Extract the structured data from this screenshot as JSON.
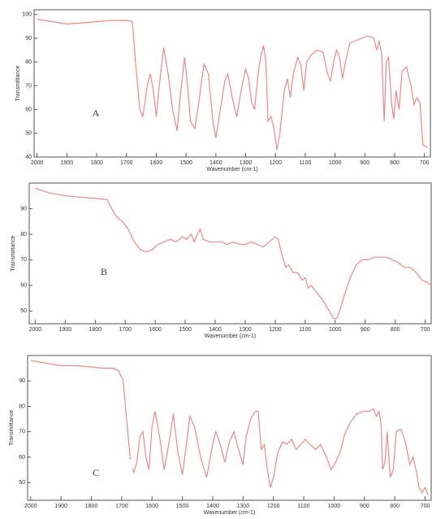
{
  "chart_data": [
    {
      "type": "line",
      "title": "A",
      "xlabel": "Wavenumber (cm-1)",
      "ylabel": "Transmittance",
      "x": [
        2000,
        1950,
        1900,
        1850,
        1800,
        1750,
        1700,
        1680,
        1670,
        1655,
        1645,
        1630,
        1620,
        1610,
        1600,
        1590,
        1575,
        1560,
        1545,
        1530,
        1520,
        1505,
        1495,
        1485,
        1470,
        1455,
        1440,
        1425,
        1410,
        1400,
        1385,
        1370,
        1360,
        1345,
        1330,
        1315,
        1300,
        1290,
        1280,
        1270,
        1260,
        1250,
        1240,
        1232,
        1225,
        1215,
        1205,
        1195,
        1185,
        1170,
        1160,
        1150,
        1140,
        1125,
        1115,
        1105,
        1095,
        1080,
        1060,
        1040,
        1025,
        1015,
        1005,
        995,
        985,
        975,
        965,
        950,
        930,
        910,
        890,
        870,
        860,
        852,
        843,
        835,
        828,
        820,
        810,
        803,
        795,
        785,
        775,
        760,
        745,
        735,
        725,
        715,
        705,
        690
      ],
      "series": [
        {
          "color": "#e58a8a",
          "values": [
            98,
            97,
            96,
            96.5,
            97,
            97.5,
            97.5,
            97,
            80,
            60,
            57,
            70,
            75,
            68,
            57,
            70,
            86,
            75,
            60,
            51,
            65,
            82,
            70,
            55,
            52,
            65,
            79,
            75,
            55,
            48,
            60,
            72,
            75,
            65,
            57,
            68,
            77,
            73,
            63,
            60,
            73,
            82,
            87,
            80,
            55,
            57,
            52,
            43,
            50,
            68,
            73,
            65,
            75,
            82,
            79,
            68,
            80,
            83,
            85,
            84,
            75,
            72,
            80,
            85,
            82,
            73,
            80,
            88,
            89,
            90,
            91,
            90,
            85,
            89,
            83,
            55,
            80,
            82,
            62,
            56,
            68,
            60,
            76,
            78,
            70,
            62,
            65,
            63,
            45,
            44
          ]
        }
      ],
      "xlim": [
        2010,
        680
      ],
      "ylim": [
        40,
        102
      ],
      "xticks": [
        2000,
        1900,
        1800,
        1700,
        1600,
        1500,
        1400,
        1300,
        1200,
        1100,
        1000,
        900,
        800,
        700
      ],
      "yticks": [
        40,
        50,
        60,
        70,
        80,
        90,
        100
      ]
    },
    {
      "type": "line",
      "title": "B",
      "xlabel": "Wavenumber (cm-1)",
      "ylabel": "Transmittance",
      "x": [
        2000,
        1950,
        1900,
        1850,
        1800,
        1760,
        1745,
        1730,
        1710,
        1690,
        1670,
        1650,
        1630,
        1610,
        1590,
        1570,
        1550,
        1530,
        1510,
        1495,
        1480,
        1470,
        1460,
        1450,
        1440,
        1420,
        1400,
        1380,
        1360,
        1340,
        1320,
        1300,
        1280,
        1260,
        1240,
        1220,
        1200,
        1190,
        1180,
        1165,
        1155,
        1140,
        1125,
        1110,
        1100,
        1090,
        1080,
        1060,
        1040,
        1020,
        1005,
        995,
        985,
        970,
        950,
        930,
        910,
        890,
        870,
        850,
        830,
        810,
        790,
        770,
        750,
        730,
        710,
        690,
        680
      ],
      "series": [
        {
          "color": "#e58a8a",
          "values": [
            98,
            96,
            95,
            94.5,
            94,
            93.5,
            90,
            87,
            85,
            82,
            77,
            74,
            73,
            74,
            76,
            77,
            78,
            77,
            79,
            78,
            80,
            77,
            80,
            82,
            78,
            77,
            77,
            77,
            76,
            77,
            76,
            76,
            77,
            76,
            75,
            77,
            79,
            78,
            73,
            67,
            68,
            65,
            65,
            62,
            63,
            59,
            60,
            57,
            54,
            50,
            47,
            47,
            50,
            56,
            63,
            68,
            70,
            70,
            71,
            71,
            71,
            70,
            69,
            67,
            67,
            65,
            62,
            61,
            60
          ]
        }
      ],
      "xlim": [
        2020,
        680
      ],
      "ylim": [
        45,
        100
      ],
      "xticks": [
        2000,
        1900,
        1800,
        1700,
        1600,
        1500,
        1400,
        1300,
        1200,
        1100,
        1000,
        900,
        800,
        700
      ],
      "yticks": [
        50,
        60,
        70,
        80,
        90
      ]
    },
    {
      "type": "line",
      "title": "C",
      "xlabel": "Wavenumber (cm-1)",
      "ylabel": "Transmittance",
      "x": [
        2000,
        1950,
        1900,
        1850,
        1800,
        1760,
        1730,
        1710,
        1695,
        1680,
        1670,
        1660,
        1650,
        1640,
        1630,
        1620,
        1610,
        1600,
        1590,
        1575,
        1560,
        1545,
        1530,
        1515,
        1500,
        1490,
        1475,
        1460,
        1440,
        1420,
        1400,
        1390,
        1375,
        1360,
        1345,
        1330,
        1315,
        1300,
        1290,
        1275,
        1260,
        1250,
        1240,
        1230,
        1220,
        1210,
        1200,
        1185,
        1170,
        1155,
        1140,
        1125,
        1110,
        1095,
        1080,
        1060,
        1045,
        1025,
        1010,
        995,
        980,
        965,
        945,
        925,
        905,
        885,
        870,
        860,
        852,
        845,
        840,
        832,
        825,
        815,
        805,
        795,
        780,
        765,
        750,
        740,
        730,
        720,
        710,
        700,
        690
      ],
      "series": [
        {
          "color": "#e58a8a",
          "values": [
            98,
            97,
            96,
            96,
            95.5,
            95,
            95,
            94,
            90,
            70,
            57,
            54,
            58,
            68,
            70,
            60,
            55,
            72,
            78,
            68,
            55,
            65,
            77,
            62,
            53,
            62,
            76,
            72,
            60,
            52,
            65,
            70,
            65,
            58,
            66,
            70,
            63,
            57,
            68,
            75,
            78,
            78,
            63,
            65,
            55,
            48,
            52,
            62,
            66,
            65,
            67,
            63,
            65,
            67,
            65,
            63,
            65,
            60,
            55,
            58,
            62,
            69,
            74,
            77,
            78,
            78,
            79,
            76,
            78,
            73,
            55,
            58,
            70,
            52,
            55,
            70,
            71,
            66,
            57,
            60,
            55,
            48,
            46,
            48,
            45
          ]
        }
      ],
      "xlim": [
        2010,
        680
      ],
      "ylim": [
        43,
        100
      ],
      "xticks": [
        2000,
        1900,
        1800,
        1700,
        1600,
        1500,
        1400,
        1300,
        1200,
        1100,
        1000,
        900,
        800,
        700
      ],
      "yticks": [
        50,
        60,
        70,
        80,
        90
      ]
    }
  ]
}
